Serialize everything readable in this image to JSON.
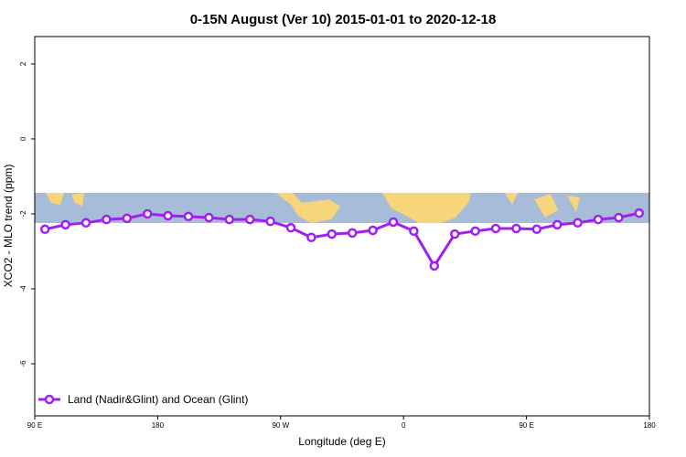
{
  "chart_data": {
    "type": "line",
    "title": "0-15N August (Ver 10)   2015-01-01 to 2020-12-18",
    "x_label": "Longitude (deg E)",
    "y_label": "XCO2 - MLO trend (ppm)",
    "xlim": [
      90,
      540
    ],
    "xticks": [
      {
        "value": 90,
        "label": "90 E"
      },
      {
        "value": 180,
        "label": "180"
      },
      {
        "value": 270,
        "label": "90 W"
      },
      {
        "value": 360,
        "label": "0"
      },
      {
        "value": 450,
        "label": "90 E"
      },
      {
        "value": 540,
        "label": "180"
      }
    ],
    "ylim": [
      -7.39,
      2.73
    ],
    "yticks": [
      2,
      0,
      -2,
      -4,
      -6
    ],
    "x": [
      97.5,
      112.5,
      127.5,
      142.5,
      157.5,
      172.5,
      187.5,
      202.5,
      217.5,
      232.5,
      247.5,
      262.5,
      277.5,
      292.5,
      307.5,
      322.5,
      337.5,
      352.5,
      367.5,
      382.5,
      397.5,
      412.5,
      427.5,
      442.5,
      457.5,
      472.5,
      487.5,
      502.5,
      517.5,
      532.5
    ],
    "series": [
      {
        "name": "Land (Nadir&Glint) and Ocean (Glint)",
        "color": "#a020f0",
        "values": [
          -2.41,
          -2.29,
          -2.24,
          -2.15,
          -2.12,
          -2.0,
          -2.05,
          -2.07,
          -2.1,
          -2.15,
          -2.15,
          -2.2,
          -2.37,
          -2.63,
          -2.54,
          -2.51,
          -2.44,
          -2.22,
          -2.46,
          -3.39,
          -2.54,
          -2.46,
          -2.39,
          -2.39,
          -2.41,
          -2.29,
          -2.24,
          -2.15,
          -2.1,
          -1.98
        ]
      }
    ],
    "legend": "bottom-left"
  }
}
